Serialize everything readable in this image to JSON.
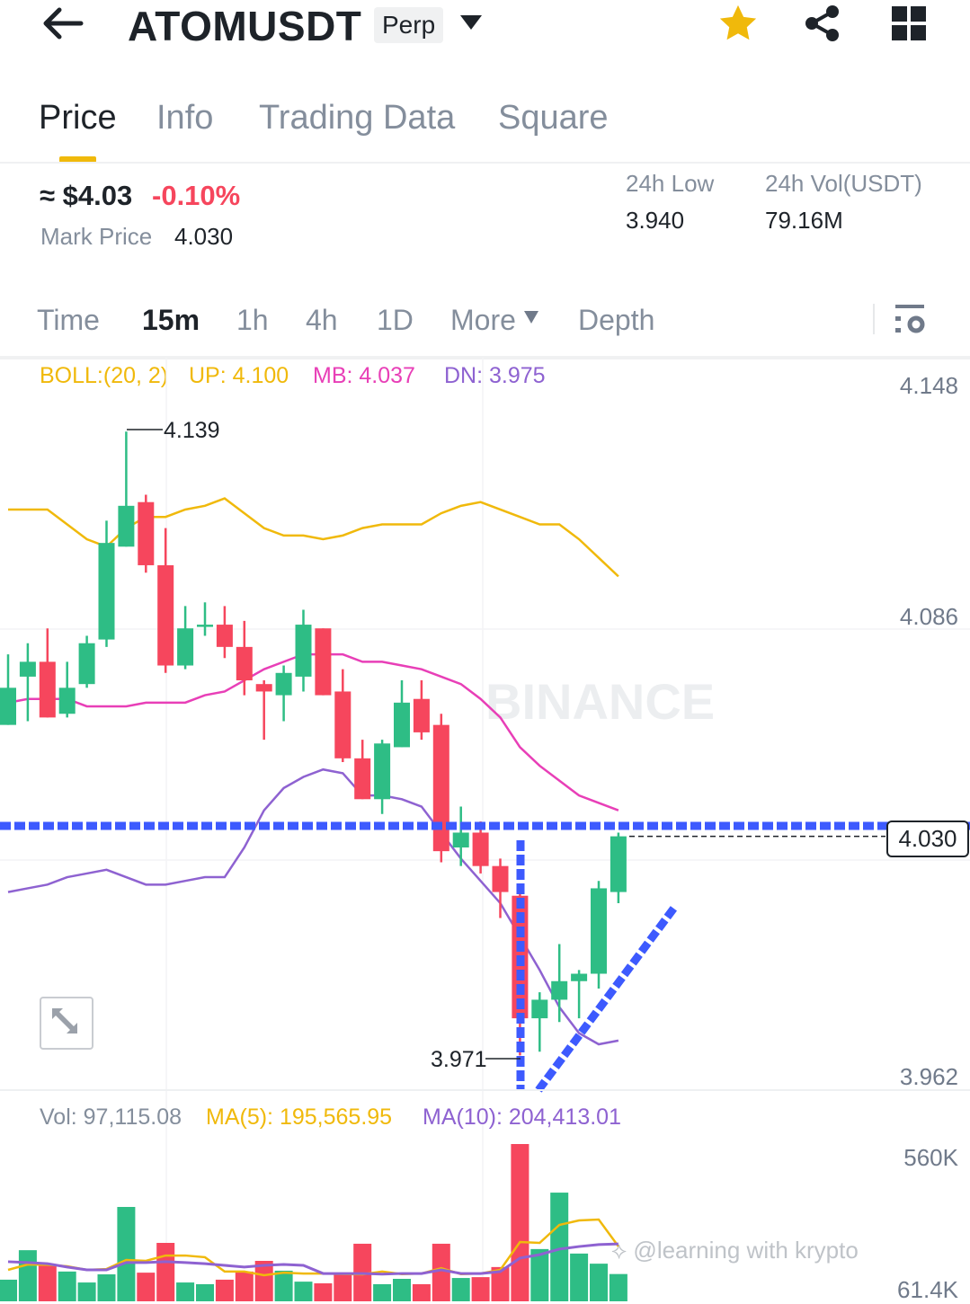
{
  "header": {
    "symbol": "ATOMUSDT",
    "badge": "Perp",
    "icons": [
      "back-arrow-icon",
      "dropdown-icon",
      "star-icon",
      "share-icon",
      "grid-icon"
    ]
  },
  "tabs": [
    {
      "label": "Price"
    },
    {
      "label": "Info"
    },
    {
      "label": "Trading Data"
    },
    {
      "label": "Square"
    }
  ],
  "ticker": {
    "price": "≈ $4.03",
    "change": "-0.10%",
    "mark_label": "Mark Price",
    "mark_value": "4.030",
    "low_label": "24h Low",
    "low_value": "3.940",
    "vol_label": "24h Vol(USDT)",
    "vol_value": "79.16M"
  },
  "timeframes": [
    {
      "label": "Time"
    },
    {
      "label": "15m"
    },
    {
      "label": "1h"
    },
    {
      "label": "4h"
    },
    {
      "label": "1D"
    },
    {
      "label": "More"
    },
    {
      "label": "Depth"
    }
  ],
  "indicators": {
    "boll": "BOLL:(20, 2)",
    "up": "UP: 4.100",
    "mb": "MB: 4.037",
    "dn": "DN: 3.975"
  },
  "volume_header": {
    "vol": "Vol: 97,115.08",
    "ma5": "MA(5): 195,565.95",
    "ma10": "MA(10): 204,413.01"
  },
  "axis": {
    "price_ticks": [
      "4.148",
      "4.086",
      "3.962"
    ],
    "current_price": "4.030",
    "high_label": "4.139",
    "low_label": "3.971",
    "vol_ticks": [
      "560K",
      "61.4K"
    ]
  },
  "watermarks": {
    "brand": "BINANCE",
    "user": "@learning with krypto"
  },
  "colors": {
    "up": "#2ebd85",
    "down": "#f6465d",
    "accent": "#f0b90b",
    "boll_up": "#f0b90b",
    "boll_mb": "#e83fb7",
    "boll_dn": "#8e62d1",
    "drawing": "#3d5afe"
  },
  "chart_data": {
    "type": "candlestick",
    "interval": "15m",
    "price_range": [
      3.962,
      4.148
    ],
    "candles": [
      [
        4.06,
        4.07,
        4.079,
        4.06
      ],
      [
        4.073,
        4.077,
        4.082,
        4.061
      ],
      [
        4.077,
        4.062,
        4.086,
        4.062
      ],
      [
        4.063,
        4.07,
        4.077,
        4.062
      ],
      [
        4.071,
        4.082,
        4.084,
        4.07
      ],
      [
        4.083,
        4.109,
        4.115,
        4.081
      ],
      [
        4.108,
        4.119,
        4.139,
        4.108
      ],
      [
        4.12,
        4.103,
        4.122,
        4.101
      ],
      [
        4.103,
        4.076,
        4.113,
        4.074
      ],
      [
        4.076,
        4.086,
        4.092,
        4.075
      ],
      [
        4.087,
        4.087,
        4.093,
        4.084
      ],
      [
        4.087,
        4.081,
        4.092,
        4.078
      ],
      [
        4.081,
        4.072,
        4.088,
        4.068
      ],
      [
        4.071,
        4.069,
        4.072,
        4.056
      ],
      [
        4.068,
        4.074,
        4.076,
        4.061
      ],
      [
        4.073,
        4.087,
        4.091,
        4.069
      ],
      [
        4.086,
        4.068,
        4.086,
        4.068
      ],
      [
        4.069,
        4.051,
        4.075,
        4.05
      ],
      [
        4.051,
        4.04,
        4.056,
        4.04
      ],
      [
        4.04,
        4.055,
        4.056,
        4.036
      ],
      [
        4.054,
        4.066,
        4.072,
        4.054
      ],
      [
        4.067,
        4.058,
        4.072,
        4.056
      ],
      [
        4.06,
        4.026,
        4.063,
        4.023
      ],
      [
        4.027,
        4.031,
        4.038,
        4.022
      ],
      [
        4.031,
        4.022,
        4.034,
        4.02
      ],
      [
        4.022,
        4.015,
        4.024,
        4.008
      ],
      [
        4.014,
        3.981,
        4.015,
        3.971
      ],
      [
        3.981,
        3.986,
        3.988,
        3.972
      ],
      [
        3.986,
        3.991,
        4.001,
        3.98
      ],
      [
        3.991,
        3.993,
        3.994,
        3.981
      ],
      [
        3.993,
        4.016,
        4.018,
        3.989
      ],
      [
        4.015,
        4.03,
        4.031,
        4.012
      ]
    ],
    "candle_fields": [
      "open",
      "close",
      "high",
      "low"
    ],
    "boll_upper": [
      4.118,
      4.118,
      4.118,
      4.114,
      4.11,
      4.108,
      4.113,
      4.116,
      4.116,
      4.118,
      4.119,
      4.121,
      4.117,
      4.113,
      4.111,
      4.111,
      4.11,
      4.111,
      4.113,
      4.114,
      4.114,
      4.114,
      4.117,
      4.119,
      4.12,
      4.118,
      4.116,
      4.114,
      4.114,
      4.11,
      4.105,
      4.1
    ],
    "boll_mid": [
      4.066,
      4.067,
      4.067,
      4.067,
      4.065,
      4.065,
      4.065,
      4.066,
      4.066,
      4.066,
      4.068,
      4.069,
      4.072,
      4.075,
      4.077,
      4.079,
      4.079,
      4.079,
      4.077,
      4.077,
      4.076,
      4.075,
      4.073,
      4.071,
      4.067,
      4.062,
      4.054,
      4.049,
      4.045,
      4.041,
      4.039,
      4.037
    ],
    "boll_lower": [
      4.015,
      4.016,
      4.017,
      4.019,
      4.02,
      4.021,
      4.019,
      4.017,
      4.017,
      4.018,
      4.019,
      4.019,
      4.027,
      4.037,
      4.043,
      4.046,
      4.048,
      4.047,
      4.041,
      4.041,
      4.04,
      4.038,
      4.031,
      4.024,
      4.018,
      4.012,
      4.003,
      3.994,
      3.984,
      3.977,
      3.974,
      3.975
    ],
    "volume": [
      77000,
      182000,
      131000,
      106000,
      67000,
      96000,
      336000,
      102000,
      208000,
      67000,
      61000,
      77000,
      106000,
      144000,
      109000,
      70000,
      64000,
      96000,
      205000,
      61000,
      80000,
      61000,
      205000,
      83000,
      86000,
      122000,
      560000,
      186000,
      387000,
      170000,
      134000,
      97115
    ],
    "vol_ma5": [
      112000,
      131000,
      130000,
      125000,
      112000,
      115000,
      147000,
      144000,
      163000,
      163000,
      157000,
      106000,
      106000,
      93000,
      102000,
      99000,
      99000,
      97000,
      96000,
      106000,
      97000,
      99000,
      118000,
      97000,
      99000,
      112000,
      211000,
      208000,
      272000,
      288000,
      291000,
      195566
    ],
    "vol_ma10": [
      141000,
      138000,
      134000,
      122000,
      112000,
      112000,
      138000,
      138000,
      141000,
      138000,
      134000,
      128000,
      122000,
      128000,
      131000,
      128000,
      99000,
      99000,
      99000,
      97000,
      99000,
      99000,
      112000,
      99000,
      99000,
      106000,
      154000,
      166000,
      186000,
      195000,
      202000,
      204413
    ],
    "vol_range": [
      0,
      560000
    ]
  }
}
